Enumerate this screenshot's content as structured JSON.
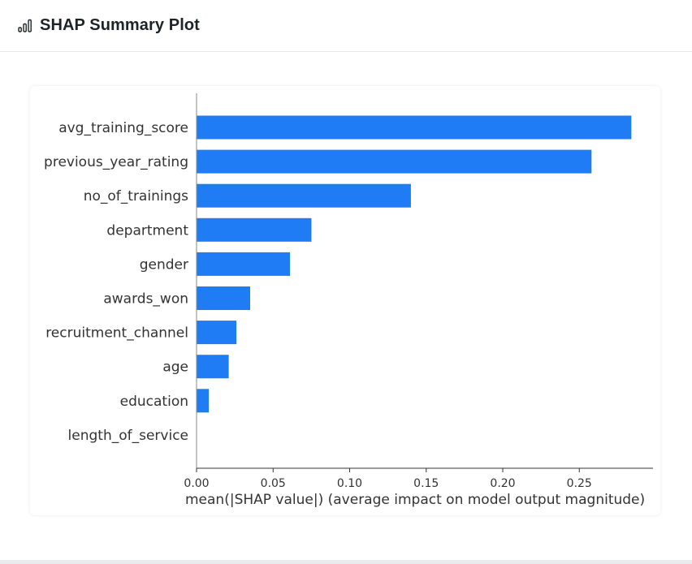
{
  "header": {
    "title": "SHAP Summary Plot",
    "icon": "bar-chart-icon"
  },
  "colors": {
    "bar": "#1f7cf5",
    "axis": "#333333",
    "text": "#333333"
  },
  "chart_data": {
    "type": "bar",
    "orientation": "horizontal",
    "title": "",
    "xlabel": "mean(|SHAP value|) (average impact on model output magnitude)",
    "ylabel": "",
    "xlim": [
      0,
      0.2975
    ],
    "xticks": [
      "0.00",
      "0.05",
      "0.10",
      "0.15",
      "0.20",
      "0.25"
    ],
    "xtick_values": [
      0.0,
      0.05,
      0.1,
      0.15,
      0.2,
      0.25
    ],
    "grid": false,
    "categories": [
      "avg_training_score",
      "previous_year_rating",
      "no_of_trainings",
      "department",
      "gender",
      "awards_won",
      "recruitment_channel",
      "age",
      "education",
      "length_of_service"
    ],
    "values": [
      0.284,
      0.258,
      0.14,
      0.075,
      0.061,
      0.035,
      0.026,
      0.021,
      0.008,
      0.0
    ]
  }
}
